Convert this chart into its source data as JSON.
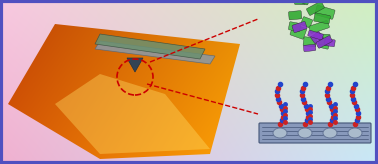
{
  "background_gradient": {
    "top_left": "#f8c8e0",
    "top_right": "#d0f0c0",
    "bottom_left": "#f0b0d0",
    "bottom_right": "#c8e8f8"
  },
  "border_color": "#5050c0",
  "border_width": 3,
  "afm_surface": {
    "color_warm": "#e06000",
    "color_bright": "#ffcc00",
    "color_dark": "#c03000"
  },
  "cantilever_color": "#7090a0",
  "cantilever_tip_color": "#405060",
  "green_lever_color": "#608070",
  "dashed_circle_color": "#cc0000",
  "dashed_line_color": "#cc0000",
  "molecular_colors": {
    "protein_green": "#44bb44",
    "protein_purple": "#8833cc",
    "chain_blue": "#2244cc",
    "chain_red": "#cc2222",
    "membrane_gray": "#8899bb",
    "oval_gray": "#aabbcc"
  },
  "fig_width": 3.78,
  "fig_height": 1.64,
  "dpi": 100
}
